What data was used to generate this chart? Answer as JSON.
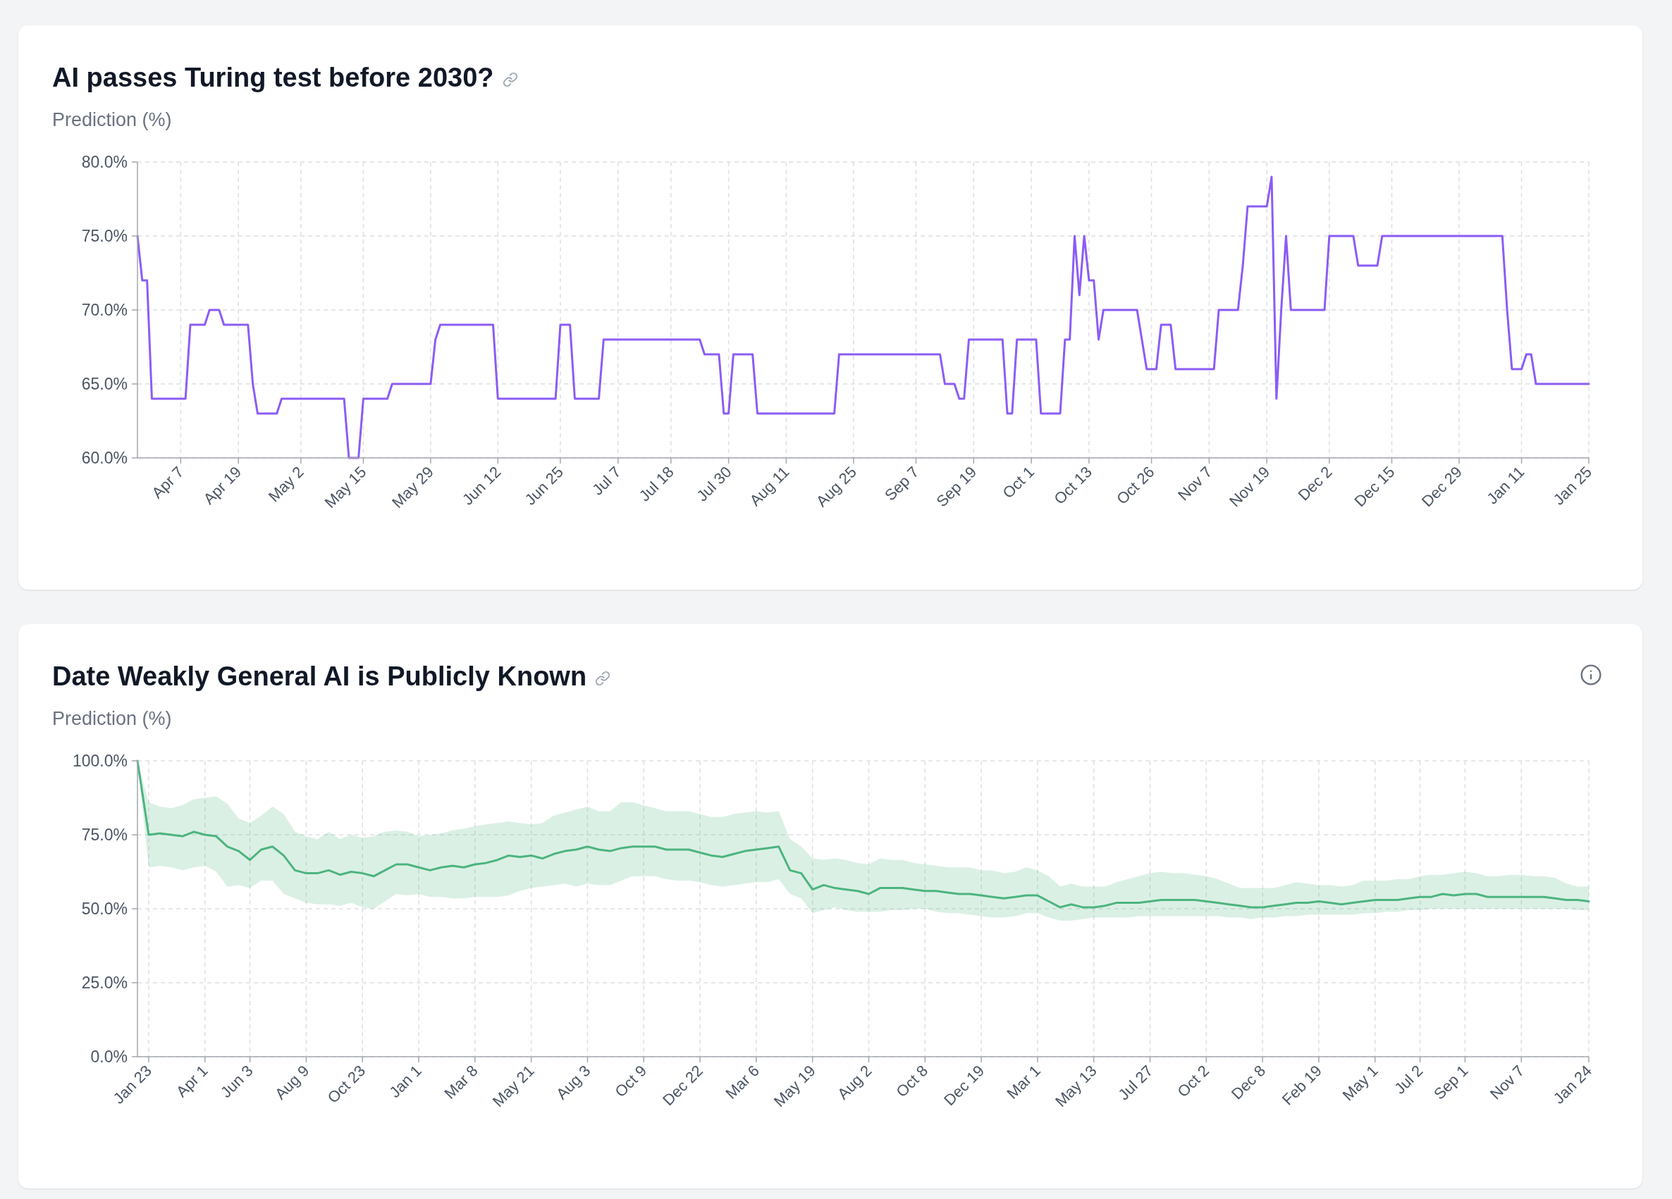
{
  "chart_data": [
    {
      "type": "line",
      "title": "AI passes Turing test before 2030?",
      "subtitle": "Prediction (%)",
      "categories": [
        null,
        null,
        null,
        null,
        null,
        null,
        null,
        null,
        null,
        "Apr 7",
        null,
        null,
        null,
        null,
        null,
        null,
        null,
        null,
        null,
        null,
        null,
        "Apr 19",
        null,
        null,
        null,
        null,
        null,
        null,
        null,
        null,
        null,
        null,
        null,
        null,
        "May 2",
        null,
        null,
        null,
        null,
        null,
        null,
        null,
        null,
        null,
        null,
        null,
        null,
        "May 15",
        null,
        null,
        null,
        null,
        null,
        null,
        null,
        null,
        null,
        null,
        null,
        null,
        null,
        "May 29",
        null,
        null,
        null,
        null,
        null,
        null,
        null,
        null,
        null,
        null,
        null,
        null,
        null,
        "Jun 12",
        null,
        null,
        null,
        null,
        null,
        null,
        null,
        null,
        null,
        null,
        null,
        null,
        "Jun 25",
        null,
        null,
        null,
        null,
        null,
        null,
        null,
        null,
        null,
        null,
        null,
        "Jul 7",
        null,
        null,
        null,
        null,
        null,
        null,
        null,
        null,
        null,
        null,
        "Jul 18",
        null,
        null,
        null,
        null,
        null,
        null,
        null,
        null,
        null,
        null,
        null,
        "Jul 30",
        null,
        null,
        null,
        null,
        null,
        null,
        null,
        null,
        null,
        null,
        null,
        "Aug 11",
        null,
        null,
        null,
        null,
        null,
        null,
        null,
        null,
        null,
        null,
        null,
        null,
        null,
        "Aug 25",
        null,
        null,
        null,
        null,
        null,
        null,
        null,
        null,
        null,
        null,
        null,
        null,
        "Sep 7",
        null,
        null,
        null,
        null,
        null,
        null,
        null,
        null,
        null,
        null,
        null,
        "Sep 19",
        null,
        null,
        null,
        null,
        null,
        null,
        null,
        null,
        null,
        null,
        null,
        "Oct 1",
        null,
        null,
        null,
        null,
        null,
        null,
        null,
        null,
        null,
        null,
        null,
        "Oct 13",
        null,
        null,
        null,
        null,
        null,
        null,
        null,
        null,
        null,
        null,
        null,
        null,
        "Oct 26",
        null,
        null,
        null,
        null,
        null,
        null,
        null,
        null,
        null,
        null,
        null,
        "Nov 7",
        null,
        null,
        null,
        null,
        null,
        null,
        null,
        null,
        null,
        null,
        null,
        "Nov 19",
        null,
        null,
        null,
        null,
        null,
        null,
        null,
        null,
        null,
        null,
        null,
        null,
        "Dec 2",
        null,
        null,
        null,
        null,
        null,
        null,
        null,
        null,
        null,
        null,
        null,
        null,
        "Dec 15",
        null,
        null,
        null,
        null,
        null,
        null,
        null,
        null,
        null,
        null,
        null,
        null,
        null,
        "Dec 29",
        null,
        null,
        null,
        null,
        null,
        null,
        null,
        null,
        null,
        null,
        null,
        null,
        "Jan 11",
        null,
        null,
        null,
        null,
        null,
        null,
        null,
        null,
        null,
        null,
        null,
        null,
        null,
        "Jan 25"
      ],
      "series": [
        {
          "color": "#8b5cf6",
          "values": [
            75,
            72,
            72,
            64,
            64,
            64,
            64,
            64,
            64,
            64,
            64,
            69,
            69,
            69,
            69,
            70,
            70,
            70,
            69,
            69,
            69,
            69,
            69,
            69,
            65,
            63,
            63,
            63,
            63,
            63,
            64,
            64,
            64,
            64,
            64,
            64,
            64,
            64,
            64,
            64,
            64,
            64,
            64,
            64,
            60,
            60,
            60,
            64,
            64,
            64,
            64,
            64,
            64,
            65,
            65,
            65,
            65,
            65,
            65,
            65,
            65,
            65,
            68,
            69,
            69,
            69,
            69,
            69,
            69,
            69,
            69,
            69,
            69,
            69,
            69,
            64,
            64,
            64,
            64,
            64,
            64,
            64,
            64,
            64,
            64,
            64,
            64,
            64,
            69,
            69,
            69,
            64,
            64,
            64,
            64,
            64,
            64,
            68,
            68,
            68,
            68,
            68,
            68,
            68,
            68,
            68,
            68,
            68,
            68,
            68,
            68,
            68,
            68,
            68,
            68,
            68,
            68,
            68,
            67,
            67,
            67,
            67,
            63,
            63,
            67,
            67,
            67,
            67,
            67,
            63,
            63,
            63,
            63,
            63,
            63,
            63,
            63,
            63,
            63,
            63,
            63,
            63,
            63,
            63,
            63,
            63,
            67,
            67,
            67,
            67,
            67,
            67,
            67,
            67,
            67,
            67,
            67,
            67,
            67,
            67,
            67,
            67,
            67,
            67,
            67,
            67,
            67,
            67,
            65,
            65,
            65,
            64,
            64,
            68,
            68,
            68,
            68,
            68,
            68,
            68,
            68,
            63,
            63,
            68,
            68,
            68,
            68,
            68,
            63,
            63,
            63,
            63,
            63,
            68,
            68,
            75,
            71,
            75,
            72,
            72,
            68,
            70,
            70,
            70,
            70,
            70,
            70,
            70,
            70,
            68,
            66,
            66,
            66,
            69,
            69,
            69,
            66,
            66,
            66,
            66,
            66,
            66,
            66,
            66,
            66,
            70,
            70,
            70,
            70,
            70,
            73,
            77,
            77,
            77,
            77,
            77,
            79,
            64,
            70,
            75,
            70,
            70,
            70,
            70,
            70,
            70,
            70,
            70,
            75,
            75,
            75,
            75,
            75,
            75,
            73,
            73,
            73,
            73,
            73,
            75,
            75,
            75,
            75,
            75,
            75,
            75,
            75,
            75,
            75,
            75,
            75,
            75,
            75,
            75,
            75,
            75,
            75,
            75,
            75,
            75,
            75,
            75,
            75,
            75,
            75,
            70,
            66,
            66,
            66,
            67,
            67,
            65,
            65,
            65,
            65,
            65,
            65,
            65,
            65,
            65,
            65,
            65,
            65
          ]
        }
      ],
      "ylim": [
        60,
        80
      ],
      "yticks": [
        {
          "value": 60,
          "label": "60.0%"
        },
        {
          "value": 65,
          "label": "65.0%"
        },
        {
          "value": 70,
          "label": "70.0%"
        },
        {
          "value": 75,
          "label": "75.0%"
        },
        {
          "value": 80,
          "label": "80.0%"
        }
      ],
      "grid": true
    },
    {
      "type": "line",
      "title": "Date Weakly General AI is Publicly Known",
      "subtitle": "Prediction (%)",
      "categories": [
        null,
        "Jan 23",
        null,
        null,
        null,
        null,
        "Apr 1",
        null,
        null,
        null,
        "Jun 3",
        null,
        null,
        null,
        null,
        "Aug 9",
        null,
        null,
        null,
        null,
        "Oct 23",
        null,
        null,
        null,
        null,
        "Jan 1",
        null,
        null,
        null,
        null,
        "Mar 8",
        null,
        null,
        null,
        null,
        "May 21",
        null,
        null,
        null,
        null,
        "Aug 3",
        null,
        null,
        null,
        null,
        "Oct 9",
        null,
        null,
        null,
        null,
        "Dec 22",
        null,
        null,
        null,
        null,
        "Mar 6",
        null,
        null,
        null,
        null,
        "May 19",
        null,
        null,
        null,
        null,
        "Aug 2",
        null,
        null,
        null,
        null,
        "Oct 8",
        null,
        null,
        null,
        null,
        "Dec 19",
        null,
        null,
        null,
        null,
        "Mar 1",
        null,
        null,
        null,
        null,
        "May 13",
        null,
        null,
        null,
        null,
        "Jul 27",
        null,
        null,
        null,
        null,
        "Oct 2",
        null,
        null,
        null,
        null,
        "Dec 8",
        null,
        null,
        null,
        null,
        "Feb 19",
        null,
        null,
        null,
        null,
        "May 1",
        null,
        null,
        null,
        "Jul 2",
        null,
        null,
        null,
        "Sep 1",
        null,
        null,
        null,
        null,
        "Nov 7",
        null,
        null,
        null,
        null,
        null,
        "Jan 24"
      ],
      "series": [
        {
          "color": "#4cb47f",
          "values": [
            100,
            75,
            75.5,
            75,
            74.5,
            76,
            75,
            74.5,
            71,
            69.5,
            66.5,
            70,
            71,
            68,
            63,
            62,
            62,
            63,
            61.5,
            62.5,
            62,
            61,
            63,
            65,
            65,
            64,
            63,
            64,
            64.5,
            64,
            65,
            65.5,
            66.5,
            68,
            67.5,
            68,
            67,
            68.5,
            69.5,
            70,
            71,
            70,
            69.5,
            70.5,
            71,
            71,
            71,
            70,
            70,
            70,
            69,
            68,
            67.5,
            68.5,
            69.5,
            70,
            70.5,
            71,
            63,
            62,
            56.5,
            58,
            57,
            56.5,
            56,
            55,
            57,
            57,
            57,
            56.5,
            56,
            56,
            55.5,
            55,
            55,
            54.5,
            54,
            53.5,
            54,
            54.5,
            54.5,
            52.5,
            50.5,
            51.5,
            50.5,
            50.5,
            51,
            52,
            52,
            52,
            52.5,
            53,
            53,
            53,
            53,
            52.5,
            52,
            51.5,
            51,
            50.5,
            50.5,
            51,
            51.5,
            52,
            52,
            52.5,
            52,
            51.5,
            52,
            52.5,
            53,
            53,
            53,
            53.5,
            54,
            54,
            55,
            54.5,
            55,
            55,
            54,
            54,
            54,
            54,
            54,
            54,
            53.5,
            53,
            53,
            52.5
          ],
          "lower": [
            100,
            64,
            64.5,
            64,
            63,
            64,
            64.5,
            62.5,
            57.5,
            58,
            57,
            59.5,
            59.5,
            55,
            53.5,
            52,
            51.5,
            51.5,
            51,
            52,
            50.5,
            50,
            52.5,
            55,
            54.5,
            55,
            54,
            54,
            53.5,
            53.5,
            54,
            54,
            54,
            54.5,
            56,
            57,
            57.5,
            58,
            58.5,
            57.5,
            58.5,
            58,
            58,
            59.5,
            61,
            61,
            61,
            60,
            59.5,
            59.5,
            59,
            58,
            57.5,
            58,
            58.5,
            59,
            59,
            60,
            55,
            53.5,
            48.5,
            49.5,
            50.5,
            49.5,
            49,
            49,
            49,
            49.5,
            49.5,
            50,
            50,
            49,
            48.5,
            48.5,
            48,
            47.5,
            47,
            47,
            47.5,
            48.5,
            48.5,
            47,
            46,
            46,
            46.5,
            47,
            47,
            47,
            47,
            47.5,
            47.5,
            47.5,
            47.5,
            47.5,
            47.5,
            47.5,
            47.5,
            47,
            47,
            46.5,
            47,
            47,
            47.5,
            47.5,
            48,
            48,
            48,
            48,
            48,
            48.5,
            48.5,
            49,
            49,
            49.5,
            49.5,
            50,
            50,
            50,
            50,
            50,
            50,
            50,
            50,
            50,
            50,
            50,
            50,
            50,
            49.5,
            49.5
          ],
          "upper": [
            100,
            86,
            84.5,
            84,
            85,
            87,
            87.5,
            88,
            85.5,
            80.5,
            79,
            81.5,
            84.5,
            82,
            76,
            74.5,
            73.5,
            76,
            73.5,
            75,
            74,
            74.5,
            76,
            76.5,
            76,
            74.5,
            75,
            75.5,
            76.5,
            77,
            78,
            78.5,
            79,
            79.5,
            79,
            78.5,
            79,
            81.5,
            82.5,
            83.5,
            84.5,
            83,
            83,
            86,
            86,
            85,
            84,
            83,
            83,
            83,
            82,
            81,
            81,
            82,
            82.5,
            83,
            82.5,
            83,
            73.5,
            71,
            67,
            66.5,
            67,
            66.5,
            65.5,
            65,
            67,
            66.5,
            66.5,
            65.5,
            65,
            64.5,
            64,
            64,
            64,
            63,
            63,
            62,
            62.5,
            64,
            63,
            61,
            57.5,
            58.5,
            57.5,
            57.5,
            57.5,
            59,
            60,
            61,
            62,
            62.5,
            62,
            62,
            61.5,
            61,
            60,
            58.5,
            57,
            57,
            57,
            57,
            58,
            59,
            58.5,
            58,
            58,
            57.5,
            58,
            59.5,
            59.5,
            59.5,
            60,
            60,
            61,
            61.5,
            61.5,
            62,
            62.5,
            62,
            61,
            61,
            61.5,
            61.5,
            61,
            61,
            60.5,
            58.5,
            57.5,
            57.5
          ]
        }
      ],
      "ylim": [
        0,
        100
      ],
      "yticks": [
        {
          "value": 0,
          "label": "0.0%"
        },
        {
          "value": 25,
          "label": "25.0%"
        },
        {
          "value": 50,
          "label": "50.0%"
        },
        {
          "value": 75,
          "label": "75.0%"
        },
        {
          "value": 100,
          "label": "100.0%"
        }
      ],
      "grid": true
    }
  ]
}
